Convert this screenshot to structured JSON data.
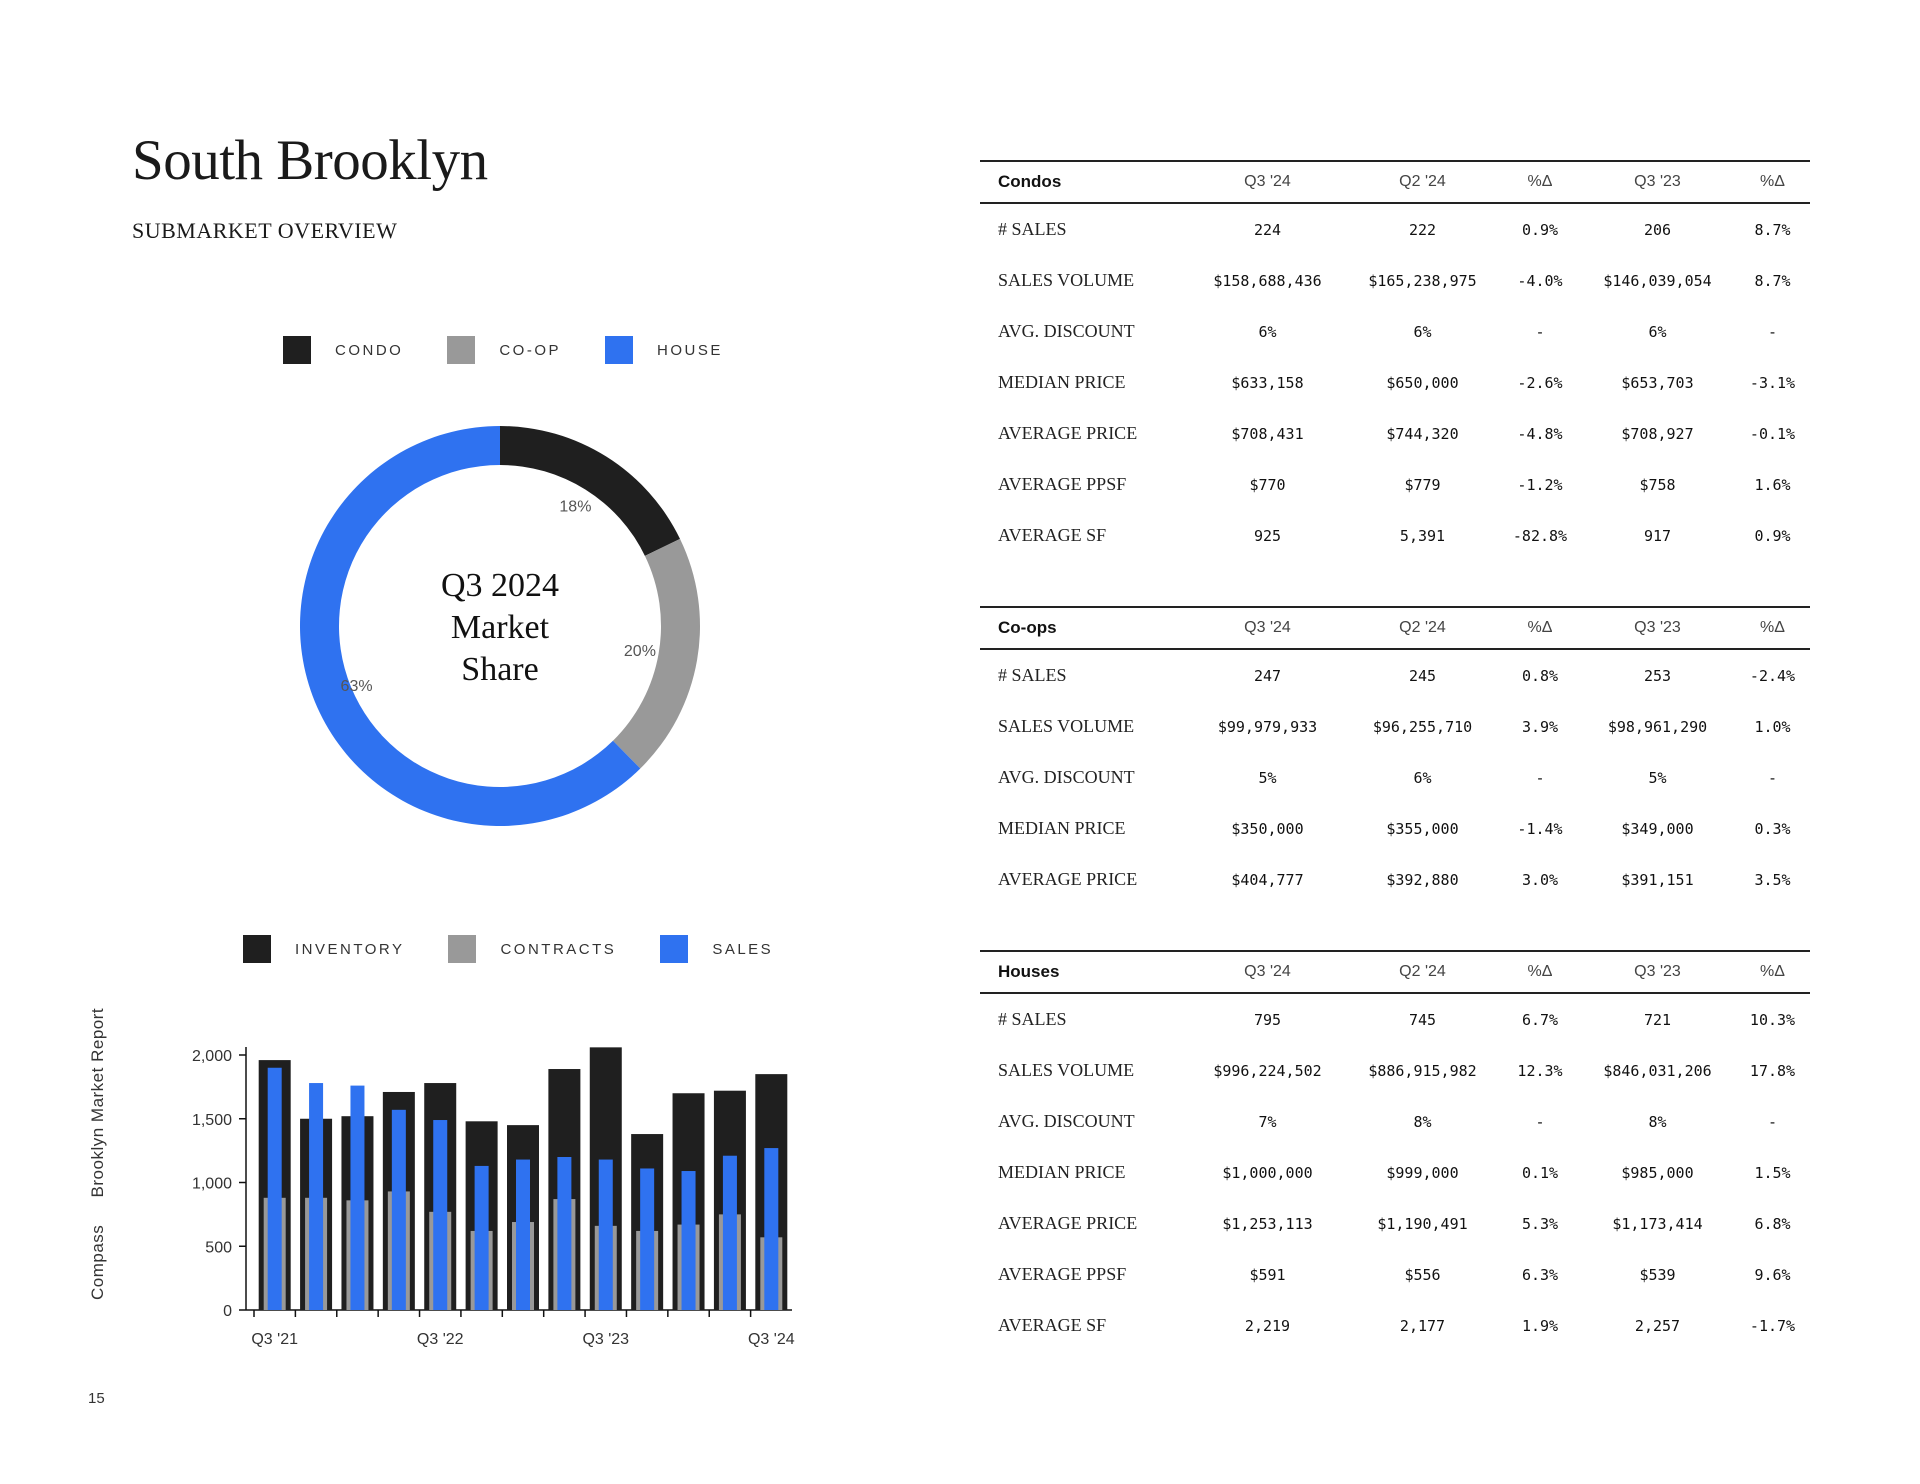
{
  "header": {
    "title": "South Brooklyn",
    "subtitle": "SUBMARKET OVERVIEW"
  },
  "colors": {
    "condo": "#1f1f1f",
    "coop": "#999999",
    "house": "#2f72f0"
  },
  "donut": {
    "legend": [
      "CONDO",
      "CO-OP",
      "HOUSE"
    ],
    "center_lines": [
      "Q3 2024",
      "Market",
      "Share"
    ]
  },
  "bar": {
    "legend": [
      "INVENTORY",
      "CONTRACTS",
      "SALES"
    ]
  },
  "side_text": [
    "Compass",
    "Brooklyn Market Report"
  ],
  "page_number": "15",
  "chart_data": [
    {
      "type": "pie",
      "title": "Q3 2024 Market Share",
      "categories": [
        "CONDO",
        "CO-OP",
        "HOUSE"
      ],
      "values": [
        18,
        20,
        63
      ],
      "labels": [
        "18%",
        "20%",
        "63%"
      ],
      "legend_position": "top"
    },
    {
      "type": "bar",
      "categories": [
        "Q3 '21",
        "Q4 '21",
        "Q1 '22",
        "Q2 '22",
        "Q3 '22",
        "Q4 '22",
        "Q1 '23",
        "Q2 '23",
        "Q3 '23",
        "Q4 '23",
        "Q1 '24",
        "Q2 '24",
        "Q3 '24"
      ],
      "tick_labels": [
        "Q3 '21",
        "Q3 '22",
        "Q3 '23",
        "Q3 '24"
      ],
      "series": [
        {
          "name": "INVENTORY",
          "values": [
            1960,
            1500,
            1520,
            1710,
            1780,
            1480,
            1450,
            1890,
            2060,
            1380,
            1700,
            1720,
            1850
          ]
        },
        {
          "name": "CONTRACTS",
          "values": [
            880,
            880,
            860,
            930,
            770,
            620,
            690,
            870,
            660,
            620,
            670,
            750,
            570
          ]
        },
        {
          "name": "SALES",
          "values": [
            1900,
            1780,
            1760,
            1570,
            1490,
            1130,
            1180,
            1200,
            1180,
            1110,
            1090,
            1210,
            1270
          ]
        }
      ],
      "ylim": [
        0,
        2000
      ],
      "yticks": [
        "0",
        "500",
        "1,000",
        "1,500",
        "2,000"
      ],
      "legend_position": "top"
    }
  ],
  "tables": [
    {
      "title": "Condos",
      "columns": [
        "Q3 '24",
        "Q2 '24",
        "%Δ",
        "Q3 '23",
        "%Δ"
      ],
      "rows": [
        {
          "label": "# SALES",
          "values": [
            "224",
            "222",
            "0.9%",
            "206",
            "8.7%"
          ]
        },
        {
          "label": "SALES VOLUME",
          "values": [
            "$158,688,436",
            "$165,238,975",
            "-4.0%",
            "$146,039,054",
            "8.7%"
          ]
        },
        {
          "label": "AVG. DISCOUNT",
          "values": [
            "6%",
            "6%",
            "-",
            "6%",
            "-"
          ]
        },
        {
          "label": "MEDIAN PRICE",
          "values": [
            "$633,158",
            "$650,000",
            "-2.6%",
            "$653,703",
            "-3.1%"
          ]
        },
        {
          "label": "AVERAGE PRICE",
          "values": [
            "$708,431",
            "$744,320",
            "-4.8%",
            "$708,927",
            "-0.1%"
          ]
        },
        {
          "label": "AVERAGE PPSF",
          "values": [
            "$770",
            "$779",
            "-1.2%",
            "$758",
            "1.6%"
          ]
        },
        {
          "label": "AVERAGE SF",
          "values": [
            "925",
            "5,391",
            "-82.8%",
            "917",
            "0.9%"
          ]
        }
      ]
    },
    {
      "title": "Co-ops",
      "columns": [
        "Q3 '24",
        "Q2 '24",
        "%Δ",
        "Q3 '23",
        "%Δ"
      ],
      "rows": [
        {
          "label": "# SALES",
          "values": [
            "247",
            "245",
            "0.8%",
            "253",
            "-2.4%"
          ]
        },
        {
          "label": "SALES VOLUME",
          "values": [
            "$99,979,933",
            "$96,255,710",
            "3.9%",
            "$98,961,290",
            "1.0%"
          ]
        },
        {
          "label": "AVG. DISCOUNT",
          "values": [
            "5%",
            "6%",
            "-",
            "5%",
            "-"
          ]
        },
        {
          "label": "MEDIAN PRICE",
          "values": [
            "$350,000",
            "$355,000",
            "-1.4%",
            "$349,000",
            "0.3%"
          ]
        },
        {
          "label": "AVERAGE PRICE",
          "values": [
            "$404,777",
            "$392,880",
            "3.0%",
            "$391,151",
            "3.5%"
          ]
        }
      ]
    },
    {
      "title": "Houses",
      "columns": [
        "Q3 '24",
        "Q2 '24",
        "%Δ",
        "Q3 '23",
        "%Δ"
      ],
      "rows": [
        {
          "label": "# SALES",
          "values": [
            "795",
            "745",
            "6.7%",
            "721",
            "10.3%"
          ]
        },
        {
          "label": "SALES VOLUME",
          "values": [
            "$996,224,502",
            "$886,915,982",
            "12.3%",
            "$846,031,206",
            "17.8%"
          ]
        },
        {
          "label": "AVG. DISCOUNT",
          "values": [
            "7%",
            "8%",
            "-",
            "8%",
            "-"
          ]
        },
        {
          "label": "MEDIAN PRICE",
          "values": [
            "$1,000,000",
            "$999,000",
            "0.1%",
            "$985,000",
            "1.5%"
          ]
        },
        {
          "label": "AVERAGE PRICE",
          "values": [
            "$1,253,113",
            "$1,190,491",
            "5.3%",
            "$1,173,414",
            "6.8%"
          ]
        },
        {
          "label": "AVERAGE PPSF",
          "values": [
            "$591",
            "$556",
            "6.3%",
            "$539",
            "9.6%"
          ]
        },
        {
          "label": "AVERAGE SF",
          "values": [
            "2,219",
            "2,177",
            "1.9%",
            "2,257",
            "-1.7%"
          ]
        }
      ]
    }
  ]
}
